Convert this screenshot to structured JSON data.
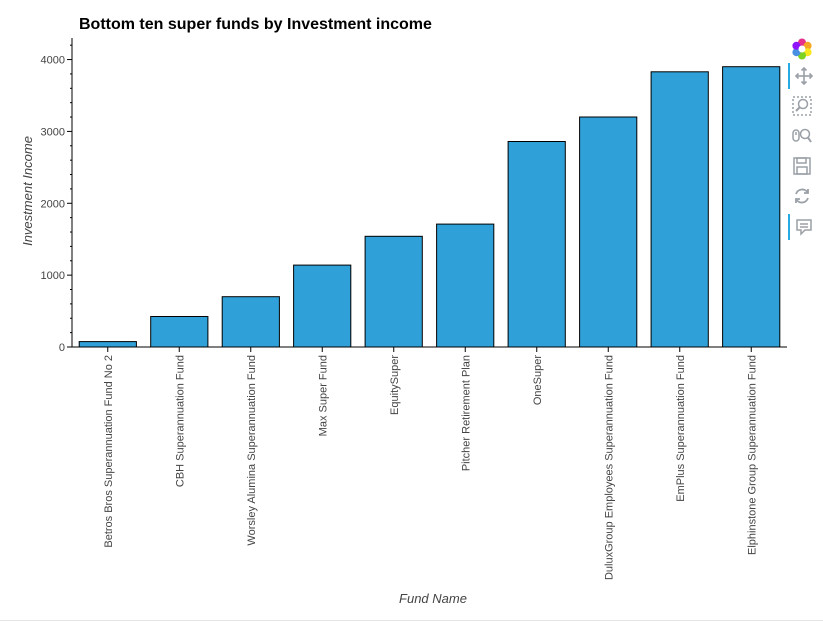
{
  "chart_data": {
    "type": "bar",
    "title": "Bottom ten super funds by Investment income",
    "xlabel": "Fund Name",
    "ylabel": "Investment Income",
    "categories": [
      "Betros Bros Superannuation Fund No 2",
      "CBH Superannuation Fund",
      "Worsley Alumina Superannuation Fund",
      "Max Super Fund",
      "EquitySuper",
      "Pitcher Retirement Plan",
      "OneSuper",
      "DuluxGroup Employees Superannuation Fund",
      "EmPlus Superannuation Fund",
      "Elphinstone Group Superannuation Fund"
    ],
    "values": [
      75,
      425,
      700,
      1140,
      1540,
      1710,
      2860,
      3200,
      3830,
      3900
    ],
    "ylim": [
      0,
      4300
    ],
    "yticks": [
      0,
      1000,
      2000,
      3000,
      4000
    ],
    "bar_color": "#2fa1d8",
    "bar_outline": "#000000",
    "grid": false
  },
  "toolbar": {
    "items": [
      {
        "name": "bokeh-logo-icon",
        "interactable": false,
        "active": false
      },
      {
        "name": "pan-icon",
        "interactable": true,
        "active": true
      },
      {
        "name": "box-zoom-icon",
        "interactable": true,
        "active": false
      },
      {
        "name": "wheel-zoom-icon",
        "interactable": true,
        "active": false
      },
      {
        "name": "save-icon",
        "interactable": true,
        "active": false
      },
      {
        "name": "reset-icon",
        "interactable": true,
        "active": false
      },
      {
        "name": "hover-icon",
        "interactable": true,
        "active": true
      }
    ]
  }
}
